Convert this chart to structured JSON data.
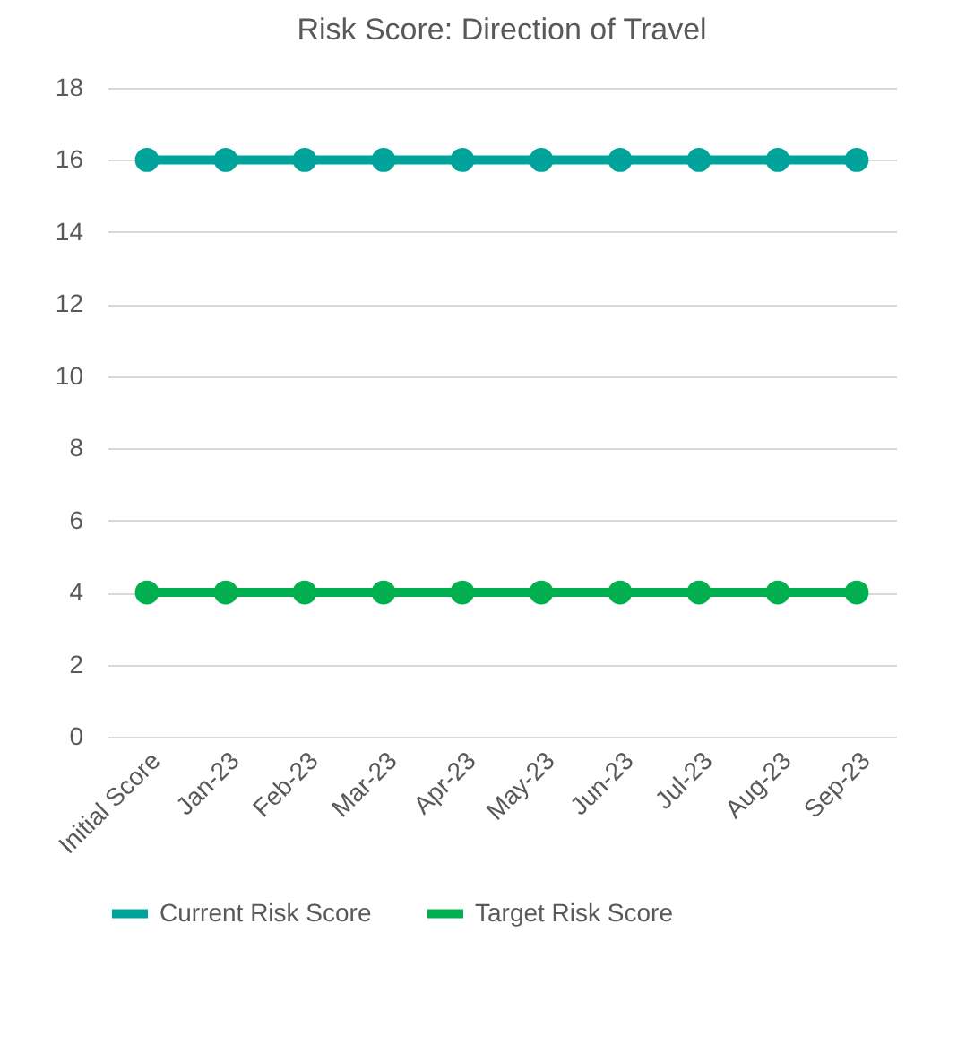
{
  "chart_data": {
    "type": "line",
    "title": "Risk Score: Direction of Travel",
    "categories": [
      "Initial Score",
      "Jan-23",
      "Feb-23",
      "Mar-23",
      "Apr-23",
      "May-23",
      "Jun-23",
      "Jul-23",
      "Aug-23",
      "Sep-23"
    ],
    "series": [
      {
        "name": "Current Risk Score",
        "color": "#00a39a",
        "values": [
          16,
          16,
          16,
          16,
          16,
          16,
          16,
          16,
          16,
          16
        ]
      },
      {
        "name": "Target Risk Score",
        "color": "#00b050",
        "values": [
          4,
          4,
          4,
          4,
          4,
          4,
          4,
          4,
          4,
          4
        ]
      }
    ],
    "ylim": [
      0,
      18
    ],
    "yticks": [
      0,
      2,
      4,
      6,
      8,
      10,
      12,
      14,
      16,
      18
    ],
    "grid": "y",
    "legend": "bottom",
    "marker": "circle",
    "line_style": "solid"
  }
}
